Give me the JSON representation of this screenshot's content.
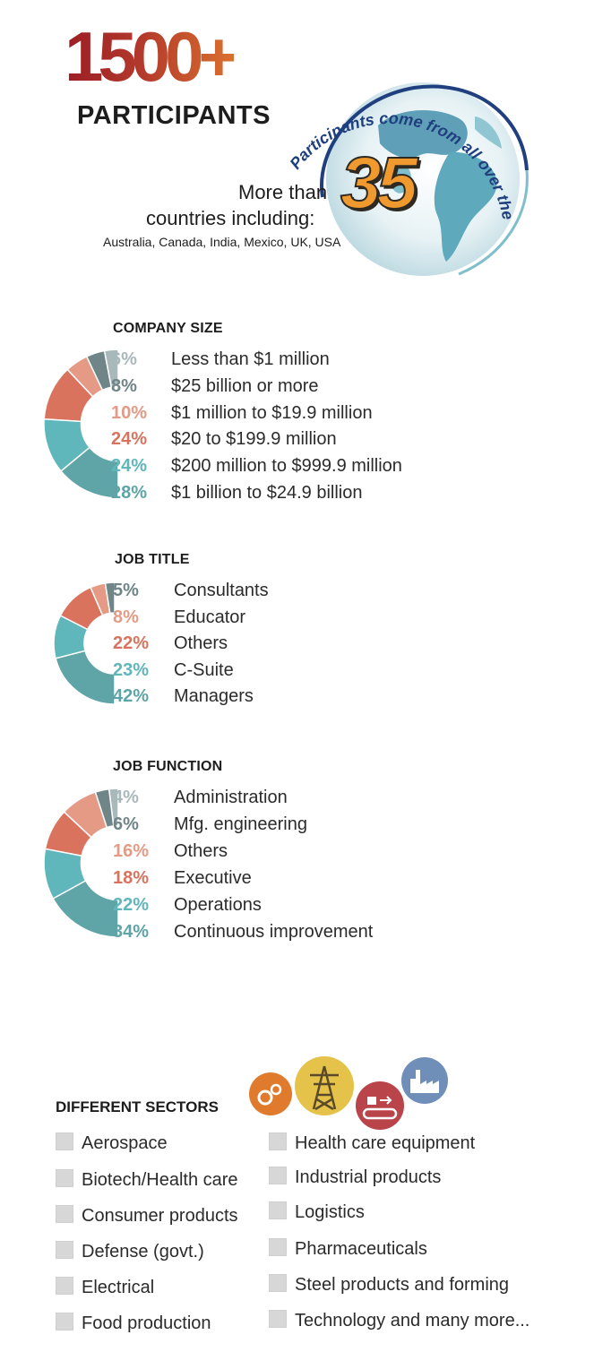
{
  "header": {
    "big_number": "1500+",
    "participants_label": "PARTICIPANTS",
    "globe_arc_text": "Participants come from all over the globe...",
    "more_than": "More than",
    "countries_number": "35",
    "countries_including": "countries including:",
    "country_list": "Australia, Canada, India, Mexico, UK, USA"
  },
  "colors": {
    "light_gray": "#a9b8bb",
    "dark_gray": "#6f8588",
    "light_salmon": "#e49a85",
    "salmon": "#d9735e",
    "teal_light": "#5fb6bb",
    "teal_dark": "#5fa4a6"
  },
  "company_size": {
    "title": "COMPANY SIZE",
    "items": [
      {
        "pct": "6%",
        "label": "Less than $1 million",
        "color": "#a9b8bb"
      },
      {
        "pct": "8%",
        "label": "$25 billion or more",
        "color": "#6f8588"
      },
      {
        "pct": "10%",
        "label": "$1 million to $19.9 million",
        "color": "#e49a85"
      },
      {
        "pct": "24%",
        "label": "$20 to $199.9 million",
        "color": "#d9735e"
      },
      {
        "pct": "24%",
        "label": "$200 million to $999.9 million",
        "color": "#5fb6bb"
      },
      {
        "pct": "28%",
        "label": "$1 billion to $24.9 billion",
        "color": "#5fa4a6"
      }
    ]
  },
  "job_title": {
    "title": "JOB TITLE",
    "items": [
      {
        "pct": "5%",
        "label": "Consultants",
        "color": "#6f8588"
      },
      {
        "pct": "8%",
        "label": "Educator",
        "color": "#e49a85"
      },
      {
        "pct": "22%",
        "label": "Others",
        "color": "#d9735e"
      },
      {
        "pct": "23%",
        "label": "C-Suite",
        "color": "#5fb6bb"
      },
      {
        "pct": "42%",
        "label": "Managers",
        "color": "#5fa4a6"
      }
    ]
  },
  "job_function": {
    "title": "JOB FUNCTION",
    "items": [
      {
        "pct": "4%",
        "label": "Administration",
        "color": "#a9b8bb"
      },
      {
        "pct": "6%",
        "label": "Mfg. engineering",
        "color": "#6f8588"
      },
      {
        "pct": "16%",
        "label": "Others",
        "color": "#e49a85"
      },
      {
        "pct": "18%",
        "label": "Executive",
        "color": "#d9735e"
      },
      {
        "pct": "22%",
        "label": "Operations",
        "color": "#5fb6bb"
      },
      {
        "pct": "34%",
        "label": "Continuous improvement",
        "color": "#5fa4a6"
      }
    ]
  },
  "chart_data": [
    {
      "type": "pie",
      "title": "COMPANY SIZE",
      "labels": [
        "Less than $1 million",
        "$25 billion or more",
        "$1 million to $19.9 million",
        "$20 to $199.9 million",
        "$200 million to $999.9 million",
        "$1 billion to $24.9 billion"
      ],
      "values": [
        6,
        8,
        10,
        24,
        24,
        28
      ]
    },
    {
      "type": "pie",
      "title": "JOB TITLE",
      "labels": [
        "Consultants",
        "Educator",
        "Others",
        "C-Suite",
        "Managers"
      ],
      "values": [
        5,
        8,
        22,
        23,
        42
      ]
    },
    {
      "type": "pie",
      "title": "JOB FUNCTION",
      "labels": [
        "Administration",
        "Mfg. engineering",
        "Others",
        "Executive",
        "Operations",
        "Continuous improvement"
      ],
      "values": [
        4,
        6,
        16,
        18,
        22,
        34
      ]
    }
  ],
  "sectors": {
    "title": "DIFFERENT SECTORS",
    "icons": [
      {
        "name": "gears-icon",
        "color": "#e07b2e"
      },
      {
        "name": "power-tower-icon",
        "color": "#e5c34a"
      },
      {
        "name": "conveyor-icon",
        "color": "#b9444a"
      },
      {
        "name": "factory-icon",
        "color": "#6f8fb9"
      }
    ],
    "left": [
      "Aerospace",
      "Biotech/Health care",
      "Consumer products",
      "Defense (govt.)",
      "Electrical",
      "Food production"
    ],
    "right": [
      "Health care equipment",
      "Industrial products",
      "Logistics",
      "Pharmaceuticals",
      "Steel products and forming",
      "Technology and many more..."
    ]
  }
}
